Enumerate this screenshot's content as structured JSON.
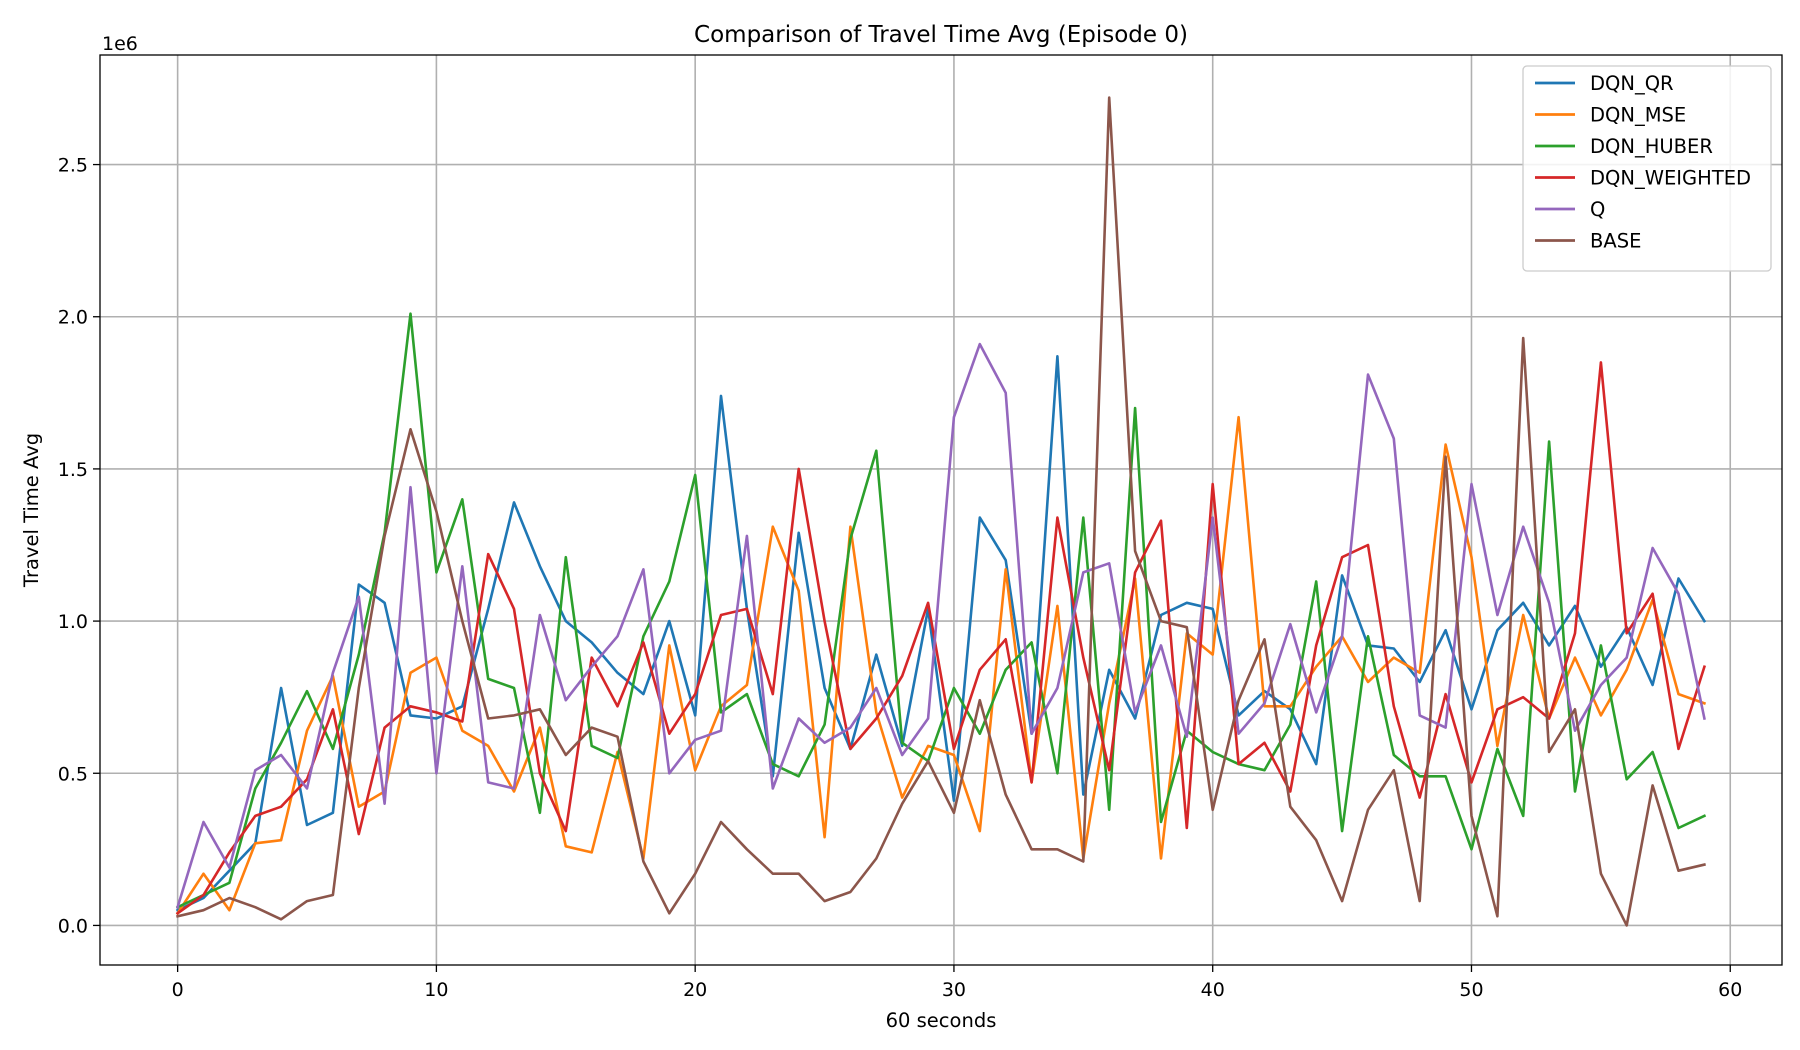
{
  "chart_data": {
    "type": "line",
    "title": "Comparison of Travel Time Avg (Episode 0)",
    "xlabel": "60 seconds",
    "ylabel": "Travel Time Avg",
    "y_offset_label": "1e6",
    "xlim": [
      -3,
      62
    ],
    "ylim": [
      -0.13,
      2.86
    ],
    "x_ticks": [
      0,
      10,
      20,
      30,
      40,
      50,
      60
    ],
    "x_tick_labels": [
      "0",
      "10",
      "20",
      "30",
      "40",
      "50",
      "60"
    ],
    "y_ticks": [
      0,
      0.5,
      1.0,
      1.5,
      2.0,
      2.5
    ],
    "y_tick_labels": [
      "0.0",
      "0.5",
      "1.0",
      "1.5",
      "2.0",
      "2.5"
    ],
    "grid": true,
    "legend_position": "top-right",
    "x": [
      0,
      1,
      2,
      3,
      4,
      5,
      6,
      7,
      8,
      9,
      10,
      11,
      12,
      13,
      14,
      15,
      16,
      17,
      18,
      19,
      20,
      21,
      22,
      23,
      24,
      25,
      26,
      27,
      28,
      29,
      30,
      31,
      32,
      33,
      34,
      35,
      36,
      37,
      38,
      39,
      40,
      41,
      42,
      43,
      44,
      45,
      46,
      47,
      48,
      49,
      50,
      51,
      52,
      53,
      54,
      55,
      56,
      57,
      58,
      59
    ],
    "series": [
      {
        "name": "DQN_QR",
        "color": "#1f77b4",
        "values": [
          0.05,
          0.09,
          0.18,
          0.27,
          0.78,
          0.33,
          0.37,
          1.12,
          1.06,
          0.69,
          0.68,
          0.72,
          1.04,
          1.39,
          1.18,
          1.0,
          0.93,
          0.83,
          0.76,
          1.0,
          0.69,
          1.74,
          1.04,
          0.49,
          1.29,
          0.78,
          0.58,
          0.89,
          0.59,
          1.04,
          0.41,
          1.34,
          1.2,
          0.63,
          1.87,
          0.43,
          0.84,
          0.68,
          1.02,
          1.06,
          1.04,
          0.69,
          0.77,
          0.71,
          0.53,
          1.15,
          0.92,
          0.91,
          0.8,
          0.97,
          0.71,
          0.97,
          1.06,
          0.92,
          1.05,
          0.85,
          0.98,
          0.79,
          1.14,
          1.0
        ]
      },
      {
        "name": "DQN_MSE",
        "color": "#ff7f0e",
        "values": [
          0.04,
          0.17,
          0.05,
          0.27,
          0.28,
          0.64,
          0.82,
          0.39,
          0.44,
          0.83,
          0.88,
          0.64,
          0.59,
          0.44,
          0.65,
          0.26,
          0.24,
          0.57,
          0.22,
          0.92,
          0.51,
          0.72,
          0.79,
          1.31,
          1.1,
          0.29,
          1.31,
          0.7,
          0.42,
          0.59,
          0.56,
          0.31,
          1.17,
          0.47,
          1.05,
          0.22,
          0.73,
          1.14,
          0.22,
          0.96,
          0.89,
          1.67,
          0.72,
          0.72,
          0.85,
          0.95,
          0.8,
          0.88,
          0.83,
          1.58,
          1.21,
          0.59,
          1.02,
          0.68,
          0.88,
          0.69,
          0.84,
          1.07,
          0.76,
          0.73
        ]
      },
      {
        "name": "DQN_HUBER",
        "color": "#2ca02c",
        "values": [
          0.06,
          0.1,
          0.14,
          0.45,
          0.6,
          0.77,
          0.58,
          0.89,
          1.29,
          2.01,
          1.16,
          1.4,
          0.81,
          0.78,
          0.37,
          1.21,
          0.59,
          0.55,
          0.95,
          1.13,
          1.48,
          0.7,
          0.76,
          0.53,
          0.49,
          0.66,
          1.27,
          1.56,
          0.6,
          0.54,
          0.78,
          0.63,
          0.84,
          0.93,
          0.5,
          1.34,
          0.38,
          1.7,
          0.34,
          0.64,
          0.57,
          0.53,
          0.51,
          0.66,
          1.13,
          0.31,
          0.95,
          0.56,
          0.49,
          0.49,
          0.25,
          0.58,
          0.36,
          1.59,
          0.44,
          0.92,
          0.48,
          0.57,
          0.32,
          0.36
        ]
      },
      {
        "name": "DQN_WEIGHTED",
        "color": "#d62728",
        "values": [
          0.04,
          0.1,
          0.24,
          0.36,
          0.39,
          0.48,
          0.71,
          0.3,
          0.65,
          0.72,
          0.7,
          0.67,
          1.22,
          1.04,
          0.5,
          0.31,
          0.88,
          0.72,
          0.93,
          0.63,
          0.76,
          1.02,
          1.04,
          0.76,
          1.5,
          1.0,
          0.58,
          0.68,
          0.82,
          1.06,
          0.58,
          0.84,
          0.94,
          0.47,
          1.34,
          0.88,
          0.51,
          1.16,
          1.33,
          0.32,
          1.45,
          0.53,
          0.6,
          0.44,
          0.92,
          1.21,
          1.25,
          0.72,
          0.42,
          0.76,
          0.47,
          0.71,
          0.75,
          0.68,
          0.96,
          1.85,
          0.96,
          1.09,
          0.58,
          0.85
        ]
      },
      {
        "name": "Q",
        "color": "#9467bd",
        "values": [
          0.06,
          0.34,
          0.19,
          0.51,
          0.56,
          0.45,
          0.83,
          1.08,
          0.4,
          1.44,
          0.5,
          1.18,
          0.47,
          0.45,
          1.02,
          0.74,
          0.85,
          0.95,
          1.17,
          0.5,
          0.61,
          0.64,
          1.28,
          0.45,
          0.68,
          0.6,
          0.65,
          0.78,
          0.56,
          0.68,
          1.67,
          1.91,
          1.75,
          0.63,
          0.78,
          1.16,
          1.19,
          0.7,
          0.92,
          0.62,
          1.34,
          0.63,
          0.73,
          0.99,
          0.7,
          0.95,
          1.81,
          1.6,
          0.69,
          0.65,
          1.45,
          1.02,
          1.31,
          1.06,
          0.64,
          0.79,
          0.88,
          1.24,
          1.09,
          0.68
        ]
      },
      {
        "name": "BASE",
        "color": "#8c564b",
        "values": [
          0.03,
          0.05,
          0.09,
          0.06,
          0.02,
          0.08,
          0.1,
          0.78,
          1.28,
          1.63,
          1.36,
          1.0,
          0.68,
          0.69,
          0.71,
          0.56,
          0.65,
          0.62,
          0.21,
          0.04,
          0.17,
          0.34,
          0.25,
          0.17,
          0.17,
          0.08,
          0.11,
          0.22,
          0.4,
          0.54,
          0.37,
          0.74,
          0.43,
          0.25,
          0.25,
          0.21,
          2.72,
          1.23,
          1.0,
          0.98,
          0.38,
          0.74,
          0.94,
          0.39,
          0.28,
          0.08,
          0.38,
          0.51,
          0.08,
          1.54,
          0.36,
          0.03,
          1.93,
          0.57,
          0.71,
          0.17,
          0.0,
          0.46,
          0.18,
          0.2
        ]
      }
    ]
  }
}
